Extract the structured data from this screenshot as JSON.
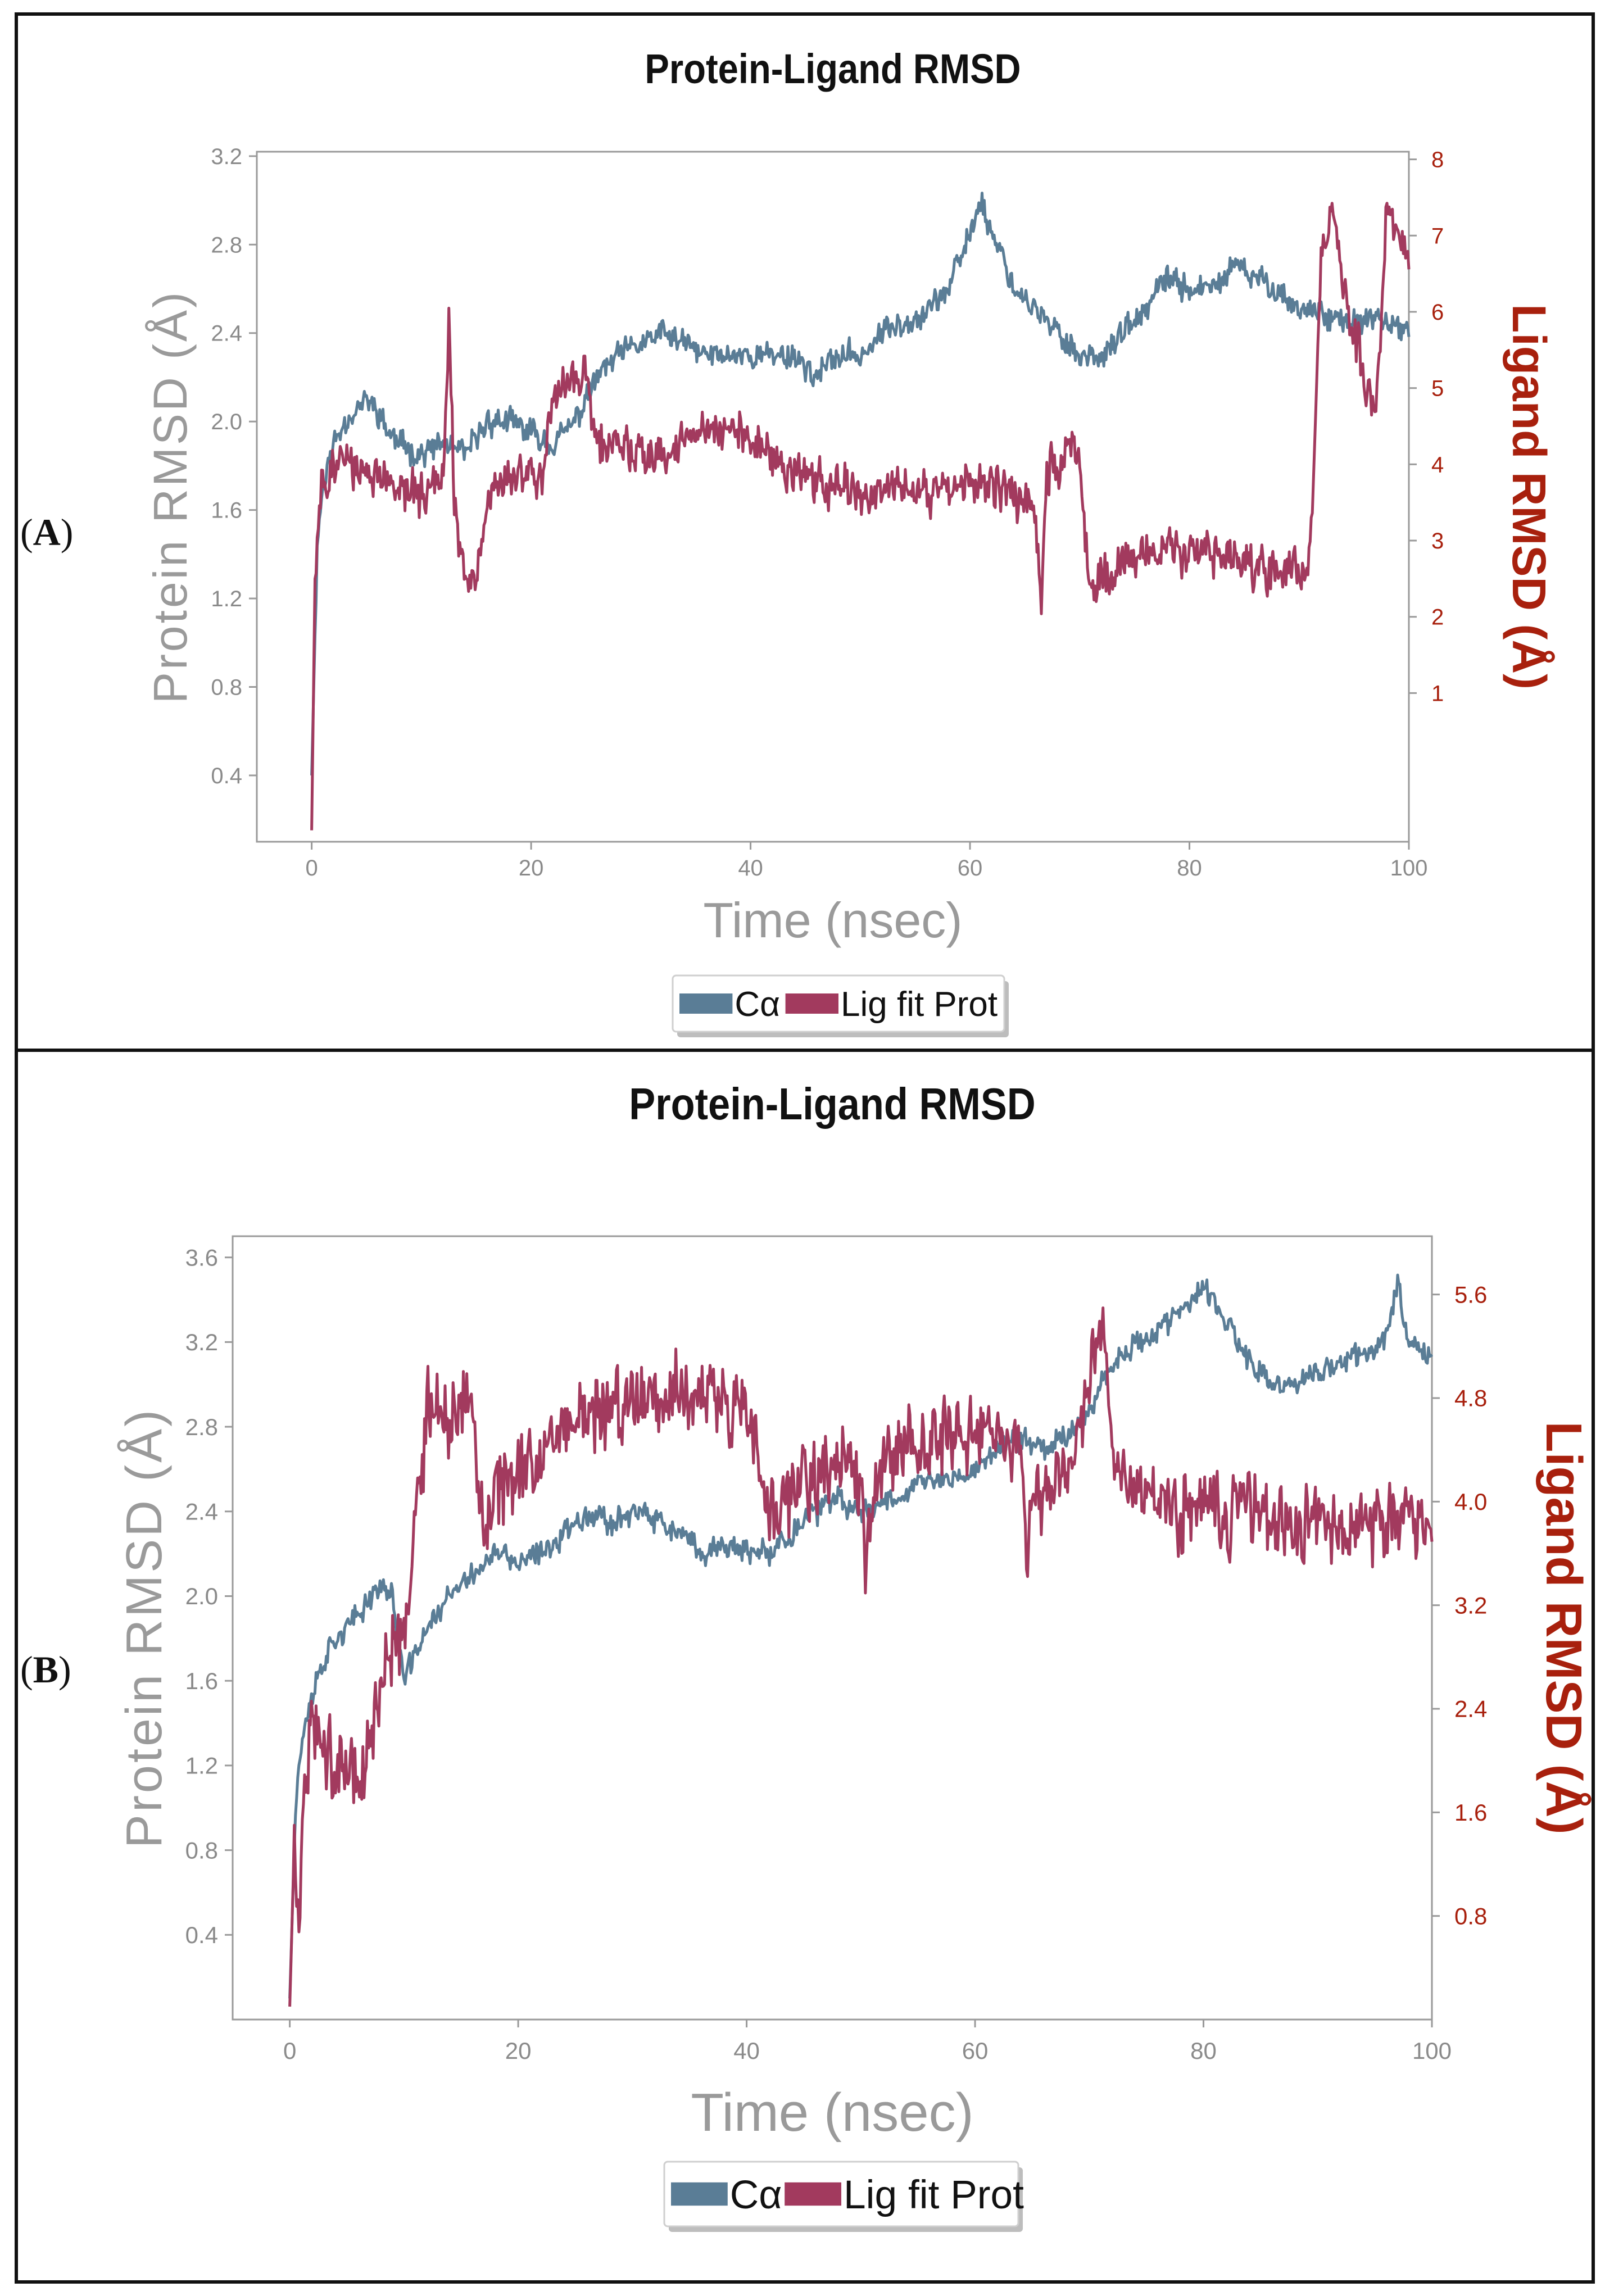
{
  "panels": [
    {
      "label": "A",
      "chart_data": {
        "type": "line",
        "title": "Protein-Ligand RMSD",
        "xlabel": "Time (nsec)",
        "ylabel": "Protein RMSD (Å)",
        "y2label": "Ligand RMSD (Å)",
        "xlim": [
          -5,
          100
        ],
        "ylim": [
          0.1,
          3.22
        ],
        "y2lim": [
          -0.95,
          8.1
        ],
        "xticks": [
          0,
          20,
          40,
          60,
          80,
          100
        ],
        "yticks": [
          0.4,
          0.8,
          1.2,
          1.6,
          2.0,
          2.4,
          2.8,
          3.2
        ],
        "y2ticks": [
          1,
          2,
          3,
          4,
          5,
          6,
          7,
          8
        ],
        "legend": [
          "Cα",
          "Lig fit Prot"
        ],
        "legend_position": "bottom-center",
        "colors": {
          "ca": "#5a7d96",
          "lig": "#a23a5e",
          "y2": "#a8200d"
        },
        "series": [
          {
            "name": "Cα",
            "axis": "left",
            "x": [
              0,
              0.5,
              1,
              2,
              3,
              4,
              5,
              6,
              7,
              8,
              10,
              12,
              14,
              16,
              18,
              20,
              22,
              24,
              26,
              28,
              30,
              32,
              34,
              36,
              38,
              40,
              42,
              44,
              46,
              48,
              50,
              52,
              54,
              56,
              58,
              60,
              61,
              62,
              63,
              64,
              66,
              68,
              70,
              72,
              74,
              76,
              78,
              80,
              82,
              84,
              86,
              88,
              90,
              92,
              94,
              96,
              98,
              100
            ],
            "y": [
              0.4,
              1.45,
              1.7,
              1.9,
              2.0,
              2.05,
              2.1,
              2.05,
              1.95,
              1.9,
              1.85,
              1.9,
              1.85,
              2.0,
              2.0,
              1.95,
              1.9,
              2.0,
              2.2,
              2.3,
              2.35,
              2.4,
              2.35,
              2.3,
              2.3,
              2.3,
              2.3,
              2.3,
              2.2,
              2.3,
              2.3,
              2.4,
              2.45,
              2.5,
              2.6,
              2.85,
              3.0,
              2.85,
              2.75,
              2.6,
              2.5,
              2.4,
              2.3,
              2.3,
              2.4,
              2.5,
              2.65,
              2.6,
              2.6,
              2.7,
              2.65,
              2.6,
              2.5,
              2.5,
              2.45,
              2.45,
              2.45,
              2.4
            ]
          },
          {
            "name": "Lig fit Prot",
            "axis": "right",
            "x": [
              0,
              0.3,
              0.6,
              1,
              2,
              4,
              6,
              8,
              10,
              12,
              12.5,
              13,
              14,
              15,
              16,
              18,
              20,
              21,
              22,
              24,
              25,
              26,
              28,
              30,
              32,
              34,
              36,
              38,
              40,
              42,
              44,
              46,
              48,
              50,
              52,
              54,
              56,
              58,
              60,
              62,
              64,
              66,
              66.5,
              67,
              68,
              69,
              70,
              71,
              72,
              74,
              76,
              78,
              80,
              82,
              84,
              86,
              88,
              90,
              91,
              92,
              93,
              94,
              95,
              96,
              97,
              98,
              99,
              100
            ],
            "y": [
              -0.8,
              2.5,
              3.3,
              3.7,
              4.0,
              4.0,
              3.8,
              3.7,
              3.6,
              3.8,
              5.9,
              3.5,
              2.4,
              2.5,
              3.6,
              3.8,
              3.9,
              3.8,
              4.8,
              5.1,
              5.2,
              4.3,
              4.2,
              4.1,
              4.1,
              4.3,
              4.5,
              4.4,
              4.3,
              4.1,
              3.9,
              3.8,
              3.7,
              3.6,
              3.6,
              3.7,
              3.6,
              3.7,
              3.7,
              3.8,
              3.6,
              3.4,
              2.1,
              3.9,
              4.0,
              4.2,
              4.0,
              2.4,
              2.5,
              2.7,
              2.8,
              2.8,
              2.9,
              2.8,
              2.7,
              2.6,
              2.6,
              2.7,
              2.7,
              6.7,
              7.3,
              6.3,
              5.8,
              5.2,
              4.6,
              7.4,
              7.0,
              6.6
            ]
          }
        ]
      }
    },
    {
      "label": "B",
      "chart_data": {
        "type": "line",
        "title": "Protein-Ligand RMSD",
        "xlabel": "Time (nsec)",
        "ylabel": "Protein RMSD (Å)",
        "y2label": "Ligand RMSD (Å)",
        "xlim": [
          -5,
          100
        ],
        "ylim": [
          0.0,
          3.7
        ],
        "y2lim": [
          0.0,
          6.05
        ],
        "xticks": [
          0,
          20,
          40,
          60,
          80,
          100
        ],
        "yticks": [
          0.4,
          0.8,
          1.2,
          1.6,
          2.0,
          2.4,
          2.8,
          3.2,
          3.6
        ],
        "y2ticks": [
          0.8,
          1.6,
          2.4,
          3.2,
          4.0,
          4.8,
          5.6
        ],
        "y2ticklabels": [
          "0.8",
          "1.6",
          "2.4",
          "3.2",
          "4.0",
          "4.8",
          "5.6"
        ],
        "legend": [
          "Cα",
          "Lig fit Prot"
        ],
        "legend_position": "bottom-center",
        "colors": {
          "ca": "#5a7d96",
          "lig": "#a23a5e",
          "y2": "#a8200d"
        },
        "series": [
          {
            "name": "Cα",
            "axis": "left",
            "x": [
              0,
              0.5,
              1,
              2,
              3,
              4,
              5,
              6,
              7,
              8,
              9,
              10,
              12,
              14,
              16,
              18,
              20,
              22,
              24,
              26,
              28,
              30,
              32,
              34,
              36,
              38,
              40,
              42,
              44,
              46,
              48,
              50,
              52,
              54,
              56,
              58,
              60,
              62,
              64,
              66,
              68,
              70,
              72,
              74,
              76,
              78,
              80,
              82,
              84,
              86,
              88,
              90,
              92,
              94,
              96,
              97,
              98,
              100
            ],
            "y": [
              0.1,
              1.0,
              1.3,
              1.55,
              1.7,
              1.8,
              1.85,
              1.9,
              2.0,
              2.05,
              2.0,
              1.6,
              1.85,
              2.0,
              2.1,
              2.2,
              2.15,
              2.2,
              2.3,
              2.4,
              2.35,
              2.4,
              2.35,
              2.3,
              2.2,
              2.25,
              2.2,
              2.2,
              2.3,
              2.4,
              2.45,
              2.4,
              2.45,
              2.5,
              2.55,
              2.55,
              2.6,
              2.7,
              2.75,
              2.7,
              2.75,
              2.9,
              3.1,
              3.2,
              3.25,
              3.35,
              3.45,
              3.3,
              3.1,
              3.0,
              3.0,
              3.05,
              3.1,
              3.15,
              3.2,
              3.5,
              3.2,
              3.15
            ]
          },
          {
            "name": "Lig fit Prot",
            "axis": "right",
            "x": [
              0,
              0.4,
              0.8,
              1.2,
              2,
              3,
              4,
              5,
              6,
              7,
              8,
              9,
              10,
              11,
              12,
              14,
              16,
              17,
              18,
              20,
              22,
              24,
              26,
              28,
              30,
              32,
              34,
              36,
              38,
              40,
              42,
              44,
              46,
              48,
              50,
              50.5,
              51,
              52,
              54,
              56,
              58,
              60,
              62,
              64,
              64.5,
              65,
              66,
              68,
              70,
              71,
              72,
              74,
              76,
              78,
              80,
              82,
              84,
              86,
              88,
              90,
              92,
              94,
              96,
              98,
              100
            ],
            "y": [
              0.1,
              1.4,
              0.6,
              1.8,
              2.2,
              2.1,
              1.9,
              2.0,
              1.8,
              2.1,
              2.5,
              2.8,
              3.0,
              3.8,
              4.7,
              4.6,
              4.7,
              3.7,
              4.1,
              4.2,
              4.4,
              4.6,
              4.7,
              4.7,
              4.8,
              4.9,
              4.8,
              4.9,
              4.8,
              4.8,
              3.9,
              4.0,
              4.2,
              4.3,
              4.2,
              3.4,
              4.2,
              4.3,
              4.4,
              4.5,
              4.5,
              4.4,
              4.5,
              4.4,
              3.5,
              4.1,
              4.0,
              4.2,
              4.9,
              5.5,
              4.3,
              4.1,
              4.0,
              3.9,
              4.0,
              3.9,
              4.0,
              3.9,
              3.8,
              3.9,
              3.7,
              3.8,
              3.8,
              3.9,
              3.7
            ]
          }
        ]
      }
    }
  ]
}
